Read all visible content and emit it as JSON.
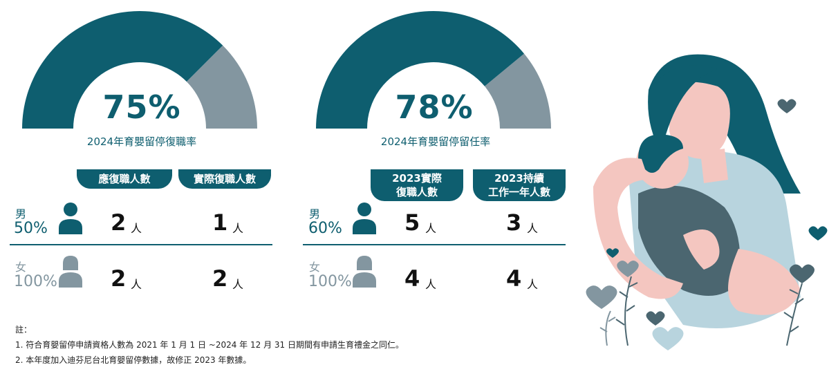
{
  "colors": {
    "teal": "#0e5e6f",
    "grey": "#8396a0"
  },
  "chart_data": [
    {
      "type": "gauge",
      "value_percent": 75,
      "value_label": "75%",
      "label": "2024年育嬰留停復職率",
      "columns": [
        "應復職人數",
        "實際復職人數"
      ],
      "rows": [
        {
          "gender": "男",
          "ratio": "50%",
          "values": [
            "2",
            "1"
          ],
          "unit": "人"
        },
        {
          "gender": "女",
          "ratio": "100%",
          "values": [
            "2",
            "2"
          ],
          "unit": "人"
        }
      ]
    },
    {
      "type": "gauge",
      "value_percent": 78,
      "value_label": "78%",
      "label": "2024年育嬰留停留任率",
      "columns": [
        "2023實際\n復職人數",
        "2023持續\n工作一年人數"
      ],
      "rows": [
        {
          "gender": "男",
          "ratio": "60%",
          "values": [
            "5",
            "3"
          ],
          "unit": "人"
        },
        {
          "gender": "女",
          "ratio": "100%",
          "values": [
            "4",
            "4"
          ],
          "unit": "人"
        }
      ]
    }
  ],
  "notes": {
    "heading": "註：",
    "items": [
      "1.  符合育嬰留停申請資格人數為 2021 年 1 月 1 日 ~2024 年 12 月 31 日期間有申請生育禮金之同仁。",
      "2.  本年度加入迪芬尼台北育嬰留停數據，故修正 2023 年數據。"
    ]
  },
  "illustration": {
    "icon": "mother-holding-baby-illustration"
  }
}
